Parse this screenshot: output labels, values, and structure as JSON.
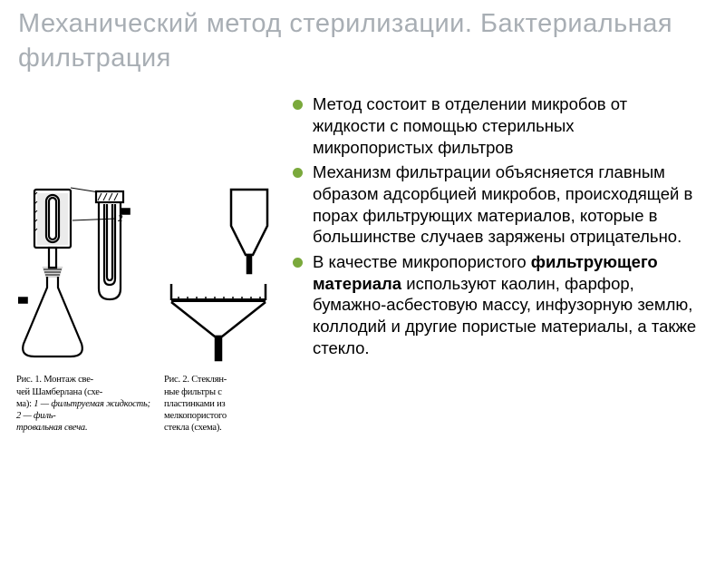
{
  "title": {
    "text": "Механический метод стерилизации. Бактериальная фильтрация",
    "color": "#a8aeb4"
  },
  "bullets": {
    "color": "#7aa93c",
    "items": [
      {
        "text": "Метод состоит в отделении микробов от жидкости с помощью стерильных микропористых фильтров"
      },
      {
        "text": "Механизм фильтрации объясняется главным образом адсорбцией микробов, происходящей в порах фильтрующих материалов, которые в большинстве случаев заряжены отрицательно."
      },
      {
        "prefix": "В качестве микропористого ",
        "bold": "фильтрующего материала",
        "suffix": " используют каолин, фарфор, бумажно-асбестовую массу, инфузорную землю, коллодий и другие пористые материалы, а также стекло."
      }
    ]
  },
  "figures": {
    "fig1": {
      "caption_lead": "Рис. 1.  Монтаж све-\nчей Шамберлана (схе-\nма): ",
      "caption_items": "1 — фильтруемая жидкость;  2 — филь-\nтровальная свеча."
    },
    "fig2": {
      "caption_lead": "Рис. 2.   Стеклян-\nные  фильтры  с\nпластинками  из\nмелкопористого\nстекла  (схема)."
    }
  }
}
